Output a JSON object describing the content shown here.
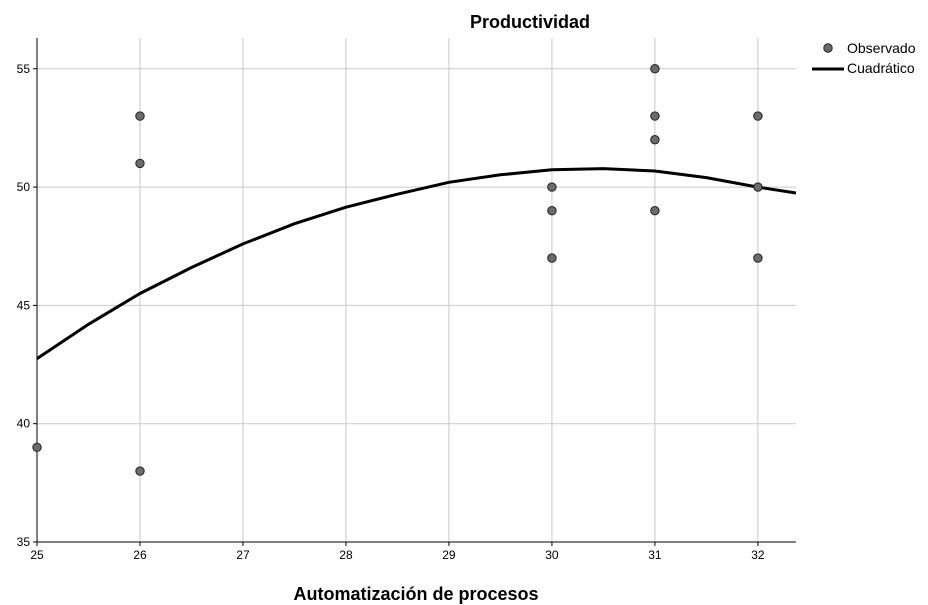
{
  "chart_data": {
    "type": "scatter",
    "title": "Productividad",
    "xlabel": "Automatización de procesos",
    "ylabel": "",
    "xlim": [
      25,
      32.37
    ],
    "ylim": [
      35,
      56.3
    ],
    "xticks": [
      "25",
      "26",
      "27",
      "28",
      "29",
      "30",
      "31",
      "32"
    ],
    "yticks": [
      "35",
      "40",
      "45",
      "50",
      "55"
    ],
    "grid": true,
    "legend_position": "top-right",
    "series": [
      {
        "name": "Observado",
        "kind": "scatter",
        "color": "#6b6b6b",
        "points": [
          [
            25,
            39
          ],
          [
            26,
            53
          ],
          [
            26,
            51
          ],
          [
            26,
            38
          ],
          [
            30,
            50
          ],
          [
            30,
            49
          ],
          [
            30,
            47
          ],
          [
            31,
            55
          ],
          [
            31,
            53
          ],
          [
            31,
            52
          ],
          [
            31,
            49
          ],
          [
            32,
            53
          ],
          [
            32,
            50
          ],
          [
            32,
            47
          ]
        ]
      },
      {
        "name": "Cuadrático",
        "kind": "line",
        "color": "#000000",
        "x": [
          25,
          25.5,
          26,
          26.5,
          27,
          27.5,
          28,
          28.5,
          29,
          29.5,
          30,
          30.5,
          31,
          31.5,
          32,
          32.37
        ],
        "y": [
          42.75,
          44.2,
          45.5,
          46.6,
          47.6,
          48.45,
          49.15,
          49.7,
          50.2,
          50.52,
          50.73,
          50.78,
          50.68,
          50.4,
          50.0,
          49.75
        ]
      }
    ]
  }
}
